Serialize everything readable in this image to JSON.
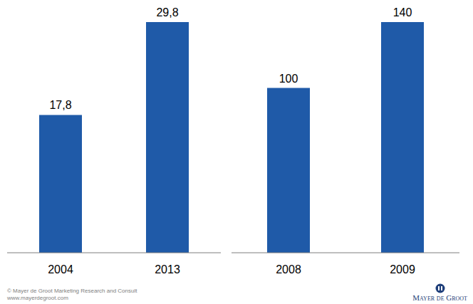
{
  "chart_data": [
    {
      "type": "bar",
      "categories": [
        "2004",
        "2013"
      ],
      "values": [
        17.8,
        29.8
      ],
      "value_labels": [
        "17,8",
        "29,8"
      ],
      "color": "#1f5aa8",
      "data_labels": true,
      "tick_labels": "x",
      "grid": false
    },
    {
      "type": "bar",
      "categories": [
        "2008",
        "2009"
      ],
      "values": [
        100,
        140
      ],
      "color": "#1f5aa8",
      "data_labels": true,
      "tick_labels": "x",
      "grid": false
    }
  ],
  "footer": {
    "copyright": "© Mayer de Groot Marketing Research and Consult",
    "url": "www.mayerdegroot.com",
    "logo": "Mayer de Groot"
  }
}
